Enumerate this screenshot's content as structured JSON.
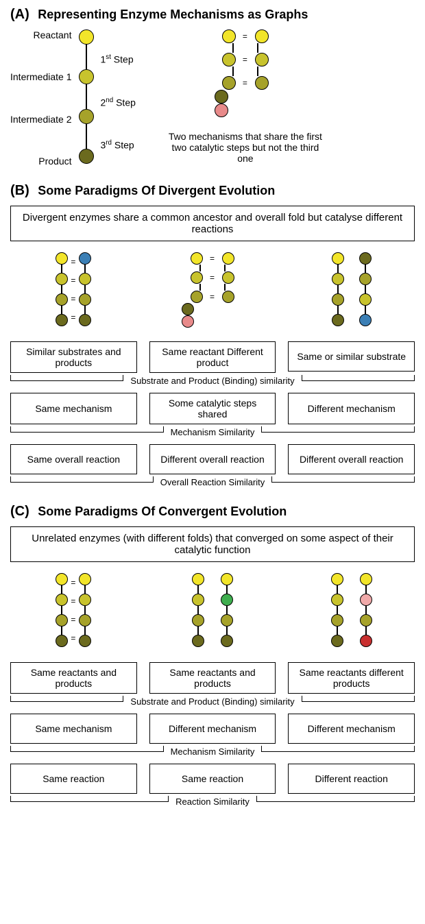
{
  "colors": {
    "yellow": "#f2e52a",
    "olive1": "#c8c32d",
    "olive2": "#a6a22a",
    "dark_olive": "#6b6a1e",
    "blue": "#3b7fb5",
    "pink": "#e88a8a",
    "green": "#3fae4f",
    "red": "#c93030",
    "light_pink": "#f0a9a9",
    "black": "#000000",
    "white": "#ffffff"
  },
  "panelA": {
    "label": "(A)",
    "title": "Representing Enzyme Mechanisms as Graphs",
    "left_labels": [
      "Reactant",
      "Intermediate 1",
      "Intermediate 2",
      "Product"
    ],
    "steps": [
      "1st Step",
      "2nd Step",
      "3rd Step"
    ],
    "step_sup": [
      "st",
      "nd",
      "rd"
    ],
    "step_num": [
      "1",
      "2",
      "3"
    ],
    "caption": "Two mechanisms that share the first two catalytic steps but not the third one",
    "chain_colors": [
      "yellow",
      "olive1",
      "olive2",
      "dark_olive"
    ],
    "fork_colors": {
      "top_pair": "yellow",
      "mid_pair": "olive1",
      "join": "olive2",
      "left": "dark_olive",
      "right": "pink"
    }
  },
  "panelB": {
    "label": "(B)",
    "title": "Some Paradigms Of Divergent Evolution",
    "wide": "Divergent enzymes share a common ancestor and overall fold but catalyse different reactions",
    "bracket_labels": [
      "Substrate and Product (Binding) similarity",
      "Mechanism Similarity",
      "Overall Reaction Similarity"
    ],
    "cols": [
      {
        "graph": {
          "type": "parallel_eq",
          "left": [
            "yellow",
            "olive1",
            "olive2",
            "dark_olive"
          ],
          "right": [
            "blue",
            "olive1",
            "olive2",
            "dark_olive"
          ]
        },
        "box1": "Similar substrates and products",
        "box2": "Same mechanism",
        "box3": "Same overall reaction"
      },
      {
        "graph": {
          "type": "fork",
          "top_pair": "yellow",
          "mid_pair": "olive1",
          "join": "olive2",
          "left": "dark_olive",
          "right": "pink"
        },
        "box1": "Same reactant Different product",
        "box2": "Some catalytic steps shared",
        "box3": "Different overall reaction"
      },
      {
        "graph": {
          "type": "antiparallel",
          "left": [
            "yellow",
            "olive1",
            "olive2",
            "dark_olive"
          ],
          "right": [
            "blue",
            "olive1",
            "olive2",
            "dark_olive"
          ]
        },
        "box1": "Same or similar substrate",
        "box2": "Different mechanism",
        "box3": "Different overall reaction"
      }
    ]
  },
  "panelC": {
    "label": "(C)",
    "title": "Some Paradigms Of Convergent Evolution",
    "wide": "Unrelated enzymes (with different folds) that converged on some aspect of their catalytic function",
    "bracket_labels": [
      "Substrate and Product (Binding) similarity",
      "Mechanism Similarity",
      "Reaction Similarity"
    ],
    "cols": [
      {
        "graph": {
          "type": "parallel_eq",
          "left": [
            "yellow",
            "olive1",
            "olive2",
            "dark_olive"
          ],
          "right": [
            "yellow",
            "olive1",
            "olive2",
            "dark_olive"
          ]
        },
        "box1": "Same reactants and products",
        "box2": "Same mechanism",
        "box3": "Same reaction"
      },
      {
        "graph": {
          "type": "parallel_gap",
          "left": [
            "yellow",
            "olive1",
            "olive2",
            "dark_olive"
          ],
          "right": [
            "yellow",
            "green",
            "olive2",
            "dark_olive"
          ]
        },
        "box1": "Same reactants and products",
        "box2": "Different mechanism",
        "box3": "Same reaction"
      },
      {
        "graph": {
          "type": "parallel_gap",
          "left": [
            "yellow",
            "olive1",
            "olive2",
            "dark_olive"
          ],
          "right": [
            "yellow",
            "light_pink",
            "olive2",
            "red"
          ]
        },
        "box1": "Same reactants different products",
        "box2": "Different mechanism",
        "box3": "Different reaction"
      }
    ]
  }
}
